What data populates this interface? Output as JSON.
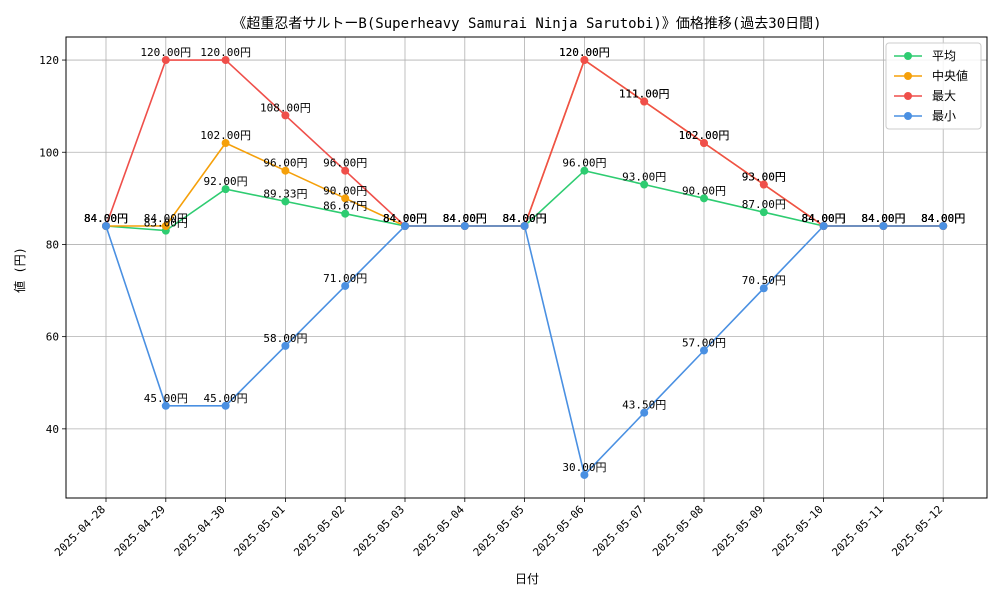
{
  "chart_data": {
    "type": "line",
    "title": "《超重忍者サルトーB(Superheavy Samurai Ninja Sarutobi)》価格推移(過去30日間)",
    "xlabel": "日付",
    "ylabel": "値 (円)",
    "ylim": [
      25,
      125
    ],
    "yticks": [
      40,
      60,
      80,
      100,
      120
    ],
    "grid": true,
    "legend_position": "top-right",
    "label_suffix": "円",
    "categories": [
      "2025-04-28",
      "2025-04-29",
      "2025-04-30",
      "2025-05-01",
      "2025-05-02",
      "2025-05-03",
      "2025-05-04",
      "2025-05-05",
      "2025-05-06",
      "2025-05-07",
      "2025-05-08",
      "2025-05-09",
      "2025-05-10",
      "2025-05-11",
      "2025-05-12"
    ],
    "series": [
      {
        "name": "平均",
        "color": "#2ecc71",
        "values": [
          84.0,
          83.0,
          92.0,
          89.33,
          86.67,
          84.0,
          84.0,
          84.0,
          96.0,
          93.0,
          90.0,
          87.0,
          84.0,
          84.0,
          84.0
        ]
      },
      {
        "name": "中央値",
        "color": "#f5a00a",
        "values": [
          84.0,
          84.0,
          102.0,
          96.0,
          90.0,
          84.0,
          84.0,
          84.0,
          120.0,
          111.0,
          102.0,
          93.0,
          84.0,
          84.0,
          84.0
        ]
      },
      {
        "name": "最大",
        "color": "#ef4f4a",
        "values": [
          84.0,
          120.0,
          120.0,
          108.0,
          96.0,
          84.0,
          84.0,
          84.0,
          120.0,
          111.0,
          102.0,
          93.0,
          84.0,
          84.0,
          84.0
        ]
      },
      {
        "name": "最小",
        "color": "#4a90e2",
        "values": [
          84.0,
          45.0,
          45.0,
          58.0,
          71.0,
          84.0,
          84.0,
          84.0,
          30.0,
          43.5,
          57.0,
          70.5,
          84.0,
          84.0,
          84.0
        ]
      }
    ]
  }
}
